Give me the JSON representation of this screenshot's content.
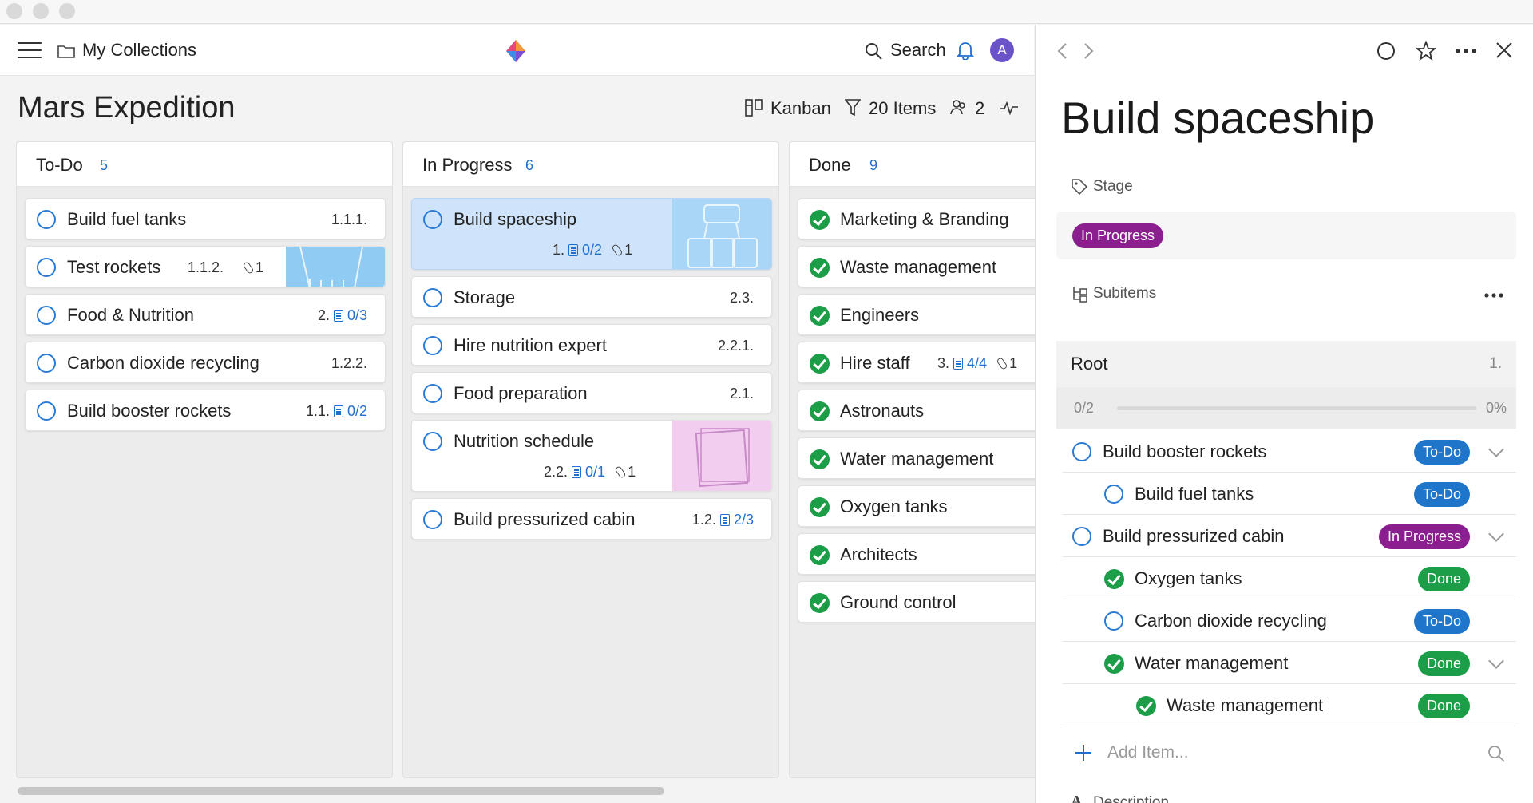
{
  "app": {
    "breadcrumb": "My Collections",
    "search_label": "Search",
    "avatar_initial": "A"
  },
  "board": {
    "title": "Mars Expedition",
    "view_label": "Kanban",
    "items_label": "20 Items",
    "members_count": "2",
    "columns": [
      {
        "title": "To-Do",
        "count": "5",
        "cards": [
          {
            "title": "Build fuel tanks",
            "num": "1.1.1."
          },
          {
            "title": "Test rockets",
            "num": "1.1.2.",
            "attachments": "1"
          },
          {
            "title": "Food & Nutrition",
            "num": "2.",
            "subitems": "0/3"
          },
          {
            "title": "Carbon dioxide recycling",
            "num": "1.2.2."
          },
          {
            "title": "Build booster rockets",
            "num": "1.1.",
            "subitems": "0/2"
          }
        ]
      },
      {
        "title": "In Progress",
        "count": "6",
        "cards": [
          {
            "title": "Build spaceship",
            "num": "1.",
            "subitems": "0/2",
            "attachments": "1"
          },
          {
            "title": "Storage",
            "num": "2.3."
          },
          {
            "title": "Hire nutrition expert",
            "num": "2.2.1."
          },
          {
            "title": "Food preparation",
            "num": "2.1."
          },
          {
            "title": "Nutrition schedule",
            "num": "2.2.",
            "subitems": "0/1",
            "attachments": "1"
          },
          {
            "title": "Build pressurized cabin",
            "num": "1.2.",
            "subitems": "2/3"
          }
        ]
      },
      {
        "title": "Done",
        "count": "9",
        "cards": [
          {
            "title": "Marketing & Branding"
          },
          {
            "title": "Waste management"
          },
          {
            "title": "Engineers"
          },
          {
            "title": "Hire staff",
            "num": "3.",
            "subitems": "4/4",
            "attachments": "1"
          },
          {
            "title": "Astronauts"
          },
          {
            "title": "Water management"
          },
          {
            "title": "Oxygen tanks"
          },
          {
            "title": "Architects"
          },
          {
            "title": "Ground control"
          }
        ]
      }
    ]
  },
  "detail": {
    "title": "Build spaceship",
    "stage_label": "Stage",
    "stage_value": "In Progress",
    "subitems_label": "Subitems",
    "root_label": "Root",
    "root_num": "1.",
    "progress_text": "0/2",
    "progress_pct": "0%",
    "progress_value": 0,
    "subitems": [
      {
        "title": "Build booster rockets",
        "status": "To-Do"
      },
      {
        "title": "Build fuel tanks",
        "status": "To-Do"
      },
      {
        "title": "Build pressurized cabin",
        "status": "In Progress"
      },
      {
        "title": "Oxygen tanks",
        "status": "Done"
      },
      {
        "title": "Carbon dioxide recycling",
        "status": "To-Do"
      },
      {
        "title": "Water management",
        "status": "Done"
      },
      {
        "title": "Waste management",
        "status": "Done"
      }
    ],
    "add_placeholder": "Add Item...",
    "description_label": "Description"
  },
  "colors": {
    "accent": "#1f6fd1",
    "done": "#1c9d47",
    "in_progress": "#8c1f90",
    "todo": "#1f75c9"
  }
}
